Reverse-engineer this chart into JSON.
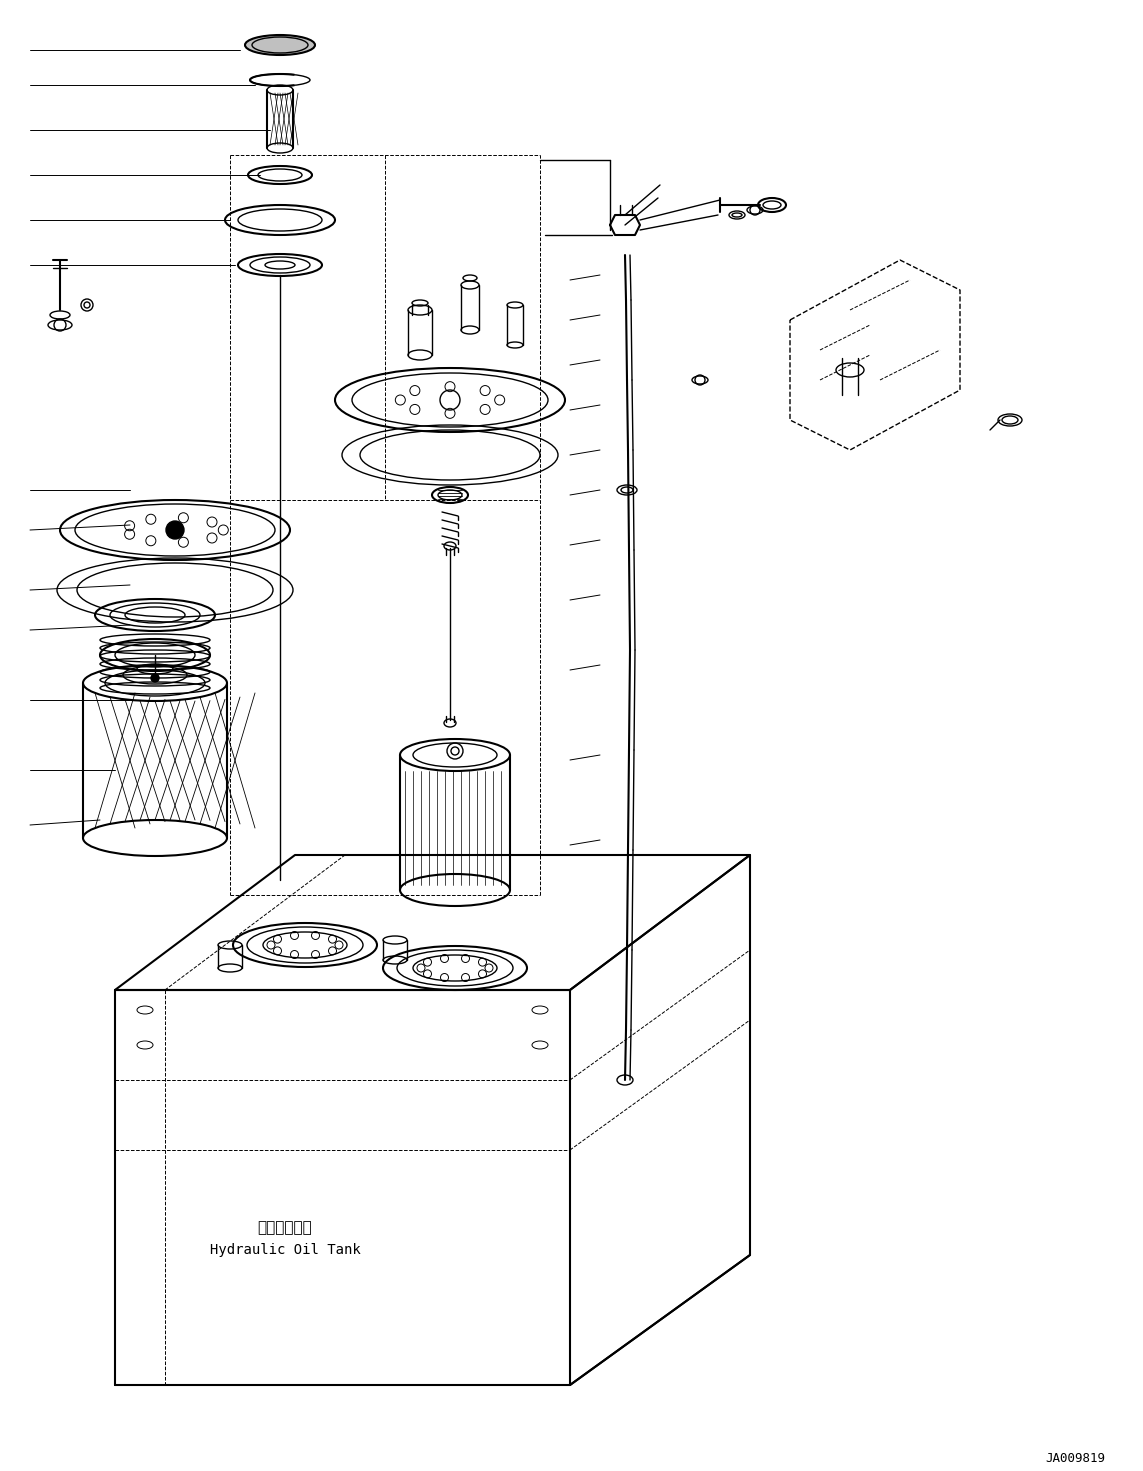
{
  "background_color": "#ffffff",
  "line_color": "#000000",
  "watermark": "JA009819",
  "label_japanese": "作動油タンク",
  "label_english": "Hydraulic Oil Tank",
  "figsize": [
    11.43,
    14.71
  ],
  "dpi": 100
}
